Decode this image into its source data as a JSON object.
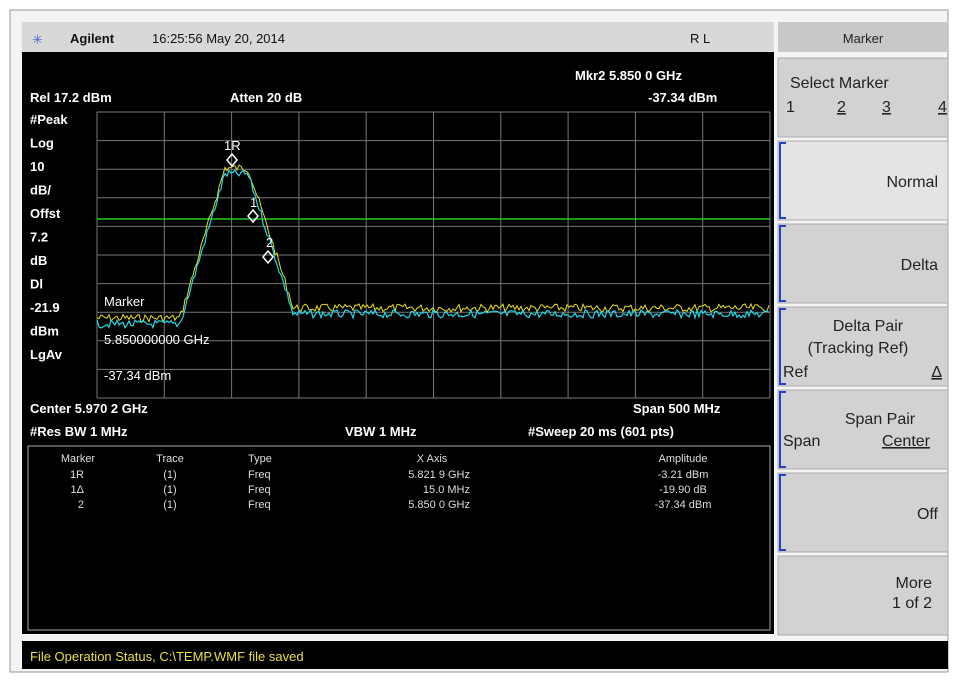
{
  "header": {
    "brand": "Agilent",
    "timestamp": "16:25:56 May 20, 2014",
    "mode": "R L"
  },
  "screen": {
    "marker_readout": {
      "frequency": "Mkr2  5.850 0 GHz",
      "amplitude": "-37.34 dBm"
    },
    "ref_level": "Rel 17.2 dBm",
    "atten": "Atten 20 dB",
    "left_labels": [
      "#Peak",
      "Log",
      "10",
      "dB/",
      "Offst",
      "7.2",
      "dB",
      "Dl",
      "-21.9",
      "dBm",
      "LgAv"
    ],
    "trace_markers": [
      "1R",
      "1",
      "2"
    ],
    "marker_overlay": [
      "Marker",
      "5.850000000 GHz",
      "-37.34 dBm"
    ],
    "center": "Center 5.970 2 GHz",
    "span": "Span 500 MHz",
    "res_bw": "#Res BW 1 MHz",
    "vbw": "VBW 1 MHz",
    "sweep": "#Sweep 20 ms (601 pts)"
  },
  "marker_table": {
    "columns": [
      "Marker",
      "Trace",
      "Type",
      "X Axis",
      "Amplitude"
    ],
    "rows": [
      [
        "1R",
        "(1)",
        "Freq",
        "5.821 9 GHz",
        "-3.21 dBm"
      ],
      [
        "1Δ",
        "(1)",
        "Freq",
        "15.0 MHz",
        "-19.90 dB"
      ],
      [
        "2",
        "(1)",
        "Freq",
        "5.850 0 GHz",
        "-37.34 dBm"
      ]
    ]
  },
  "softkeys": {
    "title": "Marker",
    "select_marker": {
      "label": "Select Marker",
      "options": [
        "1",
        "2",
        "3",
        "4"
      ]
    },
    "normal": "Normal",
    "delta": "Delta",
    "delta_pair": {
      "label": "Delta Pair",
      "sub": "(Tracking Ref)",
      "left": "Ref",
      "right": "Δ"
    },
    "span_pair": {
      "label": "Span Pair",
      "left": "Span",
      "right": "Center"
    },
    "off": "Off",
    "more": {
      "label": "More",
      "sub": "1 of 2"
    }
  },
  "status": "File Operation Status, C:\\TEMP.WMF file saved"
}
